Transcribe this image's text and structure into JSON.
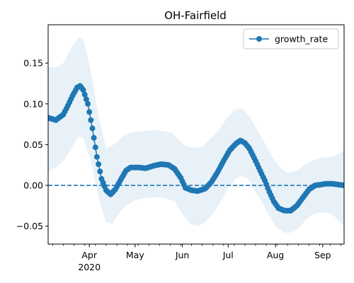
{
  "chart_data": {
    "type": "line",
    "title": "OH-Fairfield",
    "xlabel": "",
    "ylabel": "",
    "x_axis": {
      "type": "date",
      "range": [
        "2020-03-05",
        "2020-09-15"
      ],
      "major_ticks": [
        {
          "date": "2020-04-01",
          "label": "Apr"
        },
        {
          "date": "2020-05-01",
          "label": "May"
        },
        {
          "date": "2020-06-01",
          "label": "Jun"
        },
        {
          "date": "2020-07-01",
          "label": "Jul"
        },
        {
          "date": "2020-08-01",
          "label": "Aug"
        },
        {
          "date": "2020-09-01",
          "label": "Sep"
        }
      ],
      "year_label": {
        "date": "2020-04-01",
        "label": "2020"
      },
      "minor_ticks": [
        "2020-03-08",
        "2020-03-15",
        "2020-03-22",
        "2020-03-29",
        "2020-04-05",
        "2020-04-12",
        "2020-04-19",
        "2020-04-26",
        "2020-05-03",
        "2020-05-10",
        "2020-05-17",
        "2020-05-24",
        "2020-05-31",
        "2020-06-07",
        "2020-06-14",
        "2020-06-21",
        "2020-06-28",
        "2020-07-05",
        "2020-07-12",
        "2020-07-19",
        "2020-07-26",
        "2020-08-02",
        "2020-08-09",
        "2020-08-16",
        "2020-08-23",
        "2020-08-30",
        "2020-09-06",
        "2020-09-13"
      ]
    },
    "y_axis": {
      "range": [
        -0.072,
        0.197
      ],
      "ticks": [
        -0.05,
        0.0,
        0.05,
        0.1,
        0.15
      ],
      "tick_labels": [
        "−0.05",
        "0.00",
        "0.05",
        "0.10",
        "0.15"
      ]
    },
    "grid": false,
    "legend": {
      "position": "top-right",
      "entries": [
        "growth_rate"
      ]
    },
    "reference_line": {
      "y": 0.0,
      "style": "dashed",
      "color": "#1f77b4"
    },
    "series": [
      {
        "name": "growth_rate",
        "color": "#1f77b4",
        "marker": "circle",
        "points": [
          [
            "2020-03-05",
            0.083
          ],
          [
            "2020-03-10",
            0.08
          ],
          [
            "2020-03-15",
            0.087
          ],
          [
            "2020-03-18",
            0.098
          ],
          [
            "2020-03-21",
            0.11
          ],
          [
            "2020-03-24",
            0.12
          ],
          [
            "2020-03-26",
            0.122
          ],
          [
            "2020-03-28",
            0.117
          ],
          [
            "2020-03-31",
            0.1
          ],
          [
            "2020-04-03",
            0.07
          ],
          [
            "2020-04-06",
            0.035
          ],
          [
            "2020-04-09",
            0.008
          ],
          [
            "2020-04-12",
            -0.006
          ],
          [
            "2020-04-15",
            -0.011
          ],
          [
            "2020-04-18",
            -0.005
          ],
          [
            "2020-04-21",
            0.005
          ],
          [
            "2020-04-25",
            0.018
          ],
          [
            "2020-04-28",
            0.022
          ],
          [
            "2020-05-03",
            0.022
          ],
          [
            "2020-05-08",
            0.021
          ],
          [
            "2020-05-13",
            0.024
          ],
          [
            "2020-05-18",
            0.026
          ],
          [
            "2020-05-23",
            0.025
          ],
          [
            "2020-05-27",
            0.02
          ],
          [
            "2020-05-31",
            0.009
          ],
          [
            "2020-06-03",
            -0.003
          ],
          [
            "2020-06-07",
            -0.006
          ],
          [
            "2020-06-11",
            -0.007
          ],
          [
            "2020-06-16",
            -0.004
          ],
          [
            "2020-06-20",
            0.004
          ],
          [
            "2020-06-24",
            0.016
          ],
          [
            "2020-06-28",
            0.03
          ],
          [
            "2020-07-02",
            0.043
          ],
          [
            "2020-07-06",
            0.051
          ],
          [
            "2020-07-09",
            0.055
          ],
          [
            "2020-07-12",
            0.052
          ],
          [
            "2020-07-15",
            0.045
          ],
          [
            "2020-07-19",
            0.03
          ],
          [
            "2020-07-22",
            0.018
          ],
          [
            "2020-07-25",
            0.006
          ],
          [
            "2020-07-28",
            -0.008
          ],
          [
            "2020-07-31",
            -0.02
          ],
          [
            "2020-08-03",
            -0.028
          ],
          [
            "2020-08-07",
            -0.031
          ],
          [
            "2020-08-11",
            -0.031
          ],
          [
            "2020-08-15",
            -0.025
          ],
          [
            "2020-08-19",
            -0.015
          ],
          [
            "2020-08-23",
            -0.005
          ],
          [
            "2020-08-27",
            0.0
          ],
          [
            "2020-08-31",
            0.001
          ],
          [
            "2020-09-03",
            0.002
          ],
          [
            "2020-09-07",
            0.002
          ],
          [
            "2020-09-11",
            0.001
          ],
          [
            "2020-09-15",
            0.0
          ]
        ],
        "band": {
          "color": "#1f77b4",
          "upper": [
            [
              "2020-03-05",
              0.145
            ],
            [
              "2020-03-10",
              0.145
            ],
            [
              "2020-03-15",
              0.15
            ],
            [
              "2020-03-20",
              0.168
            ],
            [
              "2020-03-25",
              0.182
            ],
            [
              "2020-03-28",
              0.18
            ],
            [
              "2020-04-02",
              0.14
            ],
            [
              "2020-04-07",
              0.085
            ],
            [
              "2020-04-12",
              0.045
            ],
            [
              "2020-04-17",
              0.05
            ],
            [
              "2020-04-23",
              0.06
            ],
            [
              "2020-04-28",
              0.065
            ],
            [
              "2020-05-05",
              0.066
            ],
            [
              "2020-05-15",
              0.068
            ],
            [
              "2020-05-25",
              0.065
            ],
            [
              "2020-05-30",
              0.055
            ],
            [
              "2020-06-03",
              0.048
            ],
            [
              "2020-06-09",
              0.046
            ],
            [
              "2020-06-14",
              0.048
            ],
            [
              "2020-06-20",
              0.058
            ],
            [
              "2020-06-25",
              0.068
            ],
            [
              "2020-06-30",
              0.082
            ],
            [
              "2020-07-05",
              0.092
            ],
            [
              "2020-07-10",
              0.095
            ],
            [
              "2020-07-15",
              0.085
            ],
            [
              "2020-07-20",
              0.068
            ],
            [
              "2020-07-25",
              0.052
            ],
            [
              "2020-07-30",
              0.035
            ],
            [
              "2020-08-04",
              0.022
            ],
            [
              "2020-08-09",
              0.015
            ],
            [
              "2020-08-15",
              0.018
            ],
            [
              "2020-08-20",
              0.025
            ],
            [
              "2020-08-25",
              0.03
            ],
            [
              "2020-08-31",
              0.034
            ],
            [
              "2020-09-07",
              0.035
            ],
            [
              "2020-09-15",
              0.042
            ]
          ],
          "lower": [
            [
              "2020-03-05",
              0.017
            ],
            [
              "2020-03-10",
              0.022
            ],
            [
              "2020-03-15",
              0.03
            ],
            [
              "2020-03-20",
              0.045
            ],
            [
              "2020-03-25",
              0.06
            ],
            [
              "2020-03-28",
              0.058
            ],
            [
              "2020-04-02",
              0.03
            ],
            [
              "2020-04-07",
              -0.015
            ],
            [
              "2020-04-12",
              -0.045
            ],
            [
              "2020-04-16",
              -0.047
            ],
            [
              "2020-04-20",
              -0.035
            ],
            [
              "2020-04-25",
              -0.025
            ],
            [
              "2020-05-01",
              -0.018
            ],
            [
              "2020-05-10",
              -0.015
            ],
            [
              "2020-05-20",
              -0.015
            ],
            [
              "2020-05-27",
              -0.02
            ],
            [
              "2020-06-01",
              -0.035
            ],
            [
              "2020-06-06",
              -0.047
            ],
            [
              "2020-06-11",
              -0.05
            ],
            [
              "2020-06-16",
              -0.045
            ],
            [
              "2020-06-21",
              -0.035
            ],
            [
              "2020-06-26",
              -0.02
            ],
            [
              "2020-07-01",
              -0.003
            ],
            [
              "2020-07-06",
              0.008
            ],
            [
              "2020-07-10",
              0.012
            ],
            [
              "2020-07-14",
              0.008
            ],
            [
              "2020-07-18",
              -0.005
            ],
            [
              "2020-07-23",
              -0.02
            ],
            [
              "2020-07-28",
              -0.038
            ],
            [
              "2020-08-02",
              -0.052
            ],
            [
              "2020-08-07",
              -0.058
            ],
            [
              "2020-08-11",
              -0.058
            ],
            [
              "2020-08-16",
              -0.053
            ],
            [
              "2020-08-21",
              -0.042
            ],
            [
              "2020-08-26",
              -0.035
            ],
            [
              "2020-08-31",
              -0.033
            ],
            [
              "2020-09-07",
              -0.035
            ],
            [
              "2020-09-15",
              -0.05
            ]
          ]
        }
      }
    ]
  }
}
